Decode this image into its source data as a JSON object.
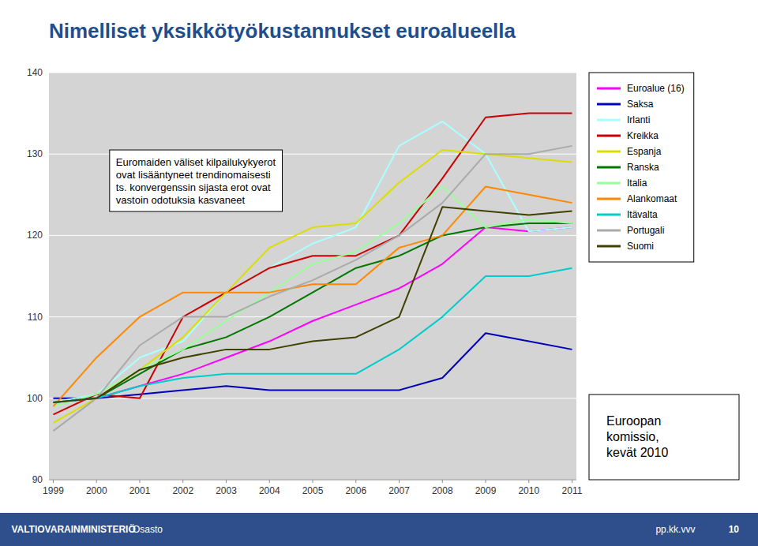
{
  "chart_data": {
    "type": "line",
    "title": "Nimelliset yksikkötyökustannukset euroalueella",
    "x": [
      1999,
      2000,
      2001,
      2002,
      2003,
      2004,
      2005,
      2006,
      2007,
      2008,
      2009,
      2010,
      2011
    ],
    "series": [
      {
        "name": "Euroalue (16)",
        "color": "#ff00ff",
        "values": [
          99.5,
          100.0,
          101.5,
          103.0,
          105.0,
          107.0,
          109.5,
          111.5,
          113.5,
          116.5,
          121.0,
          120.5,
          121.0
        ]
      },
      {
        "name": "Saksa",
        "color": "#0000bb",
        "values": [
          100.0,
          100.0,
          100.5,
          101.0,
          101.5,
          101.0,
          101.0,
          101.0,
          101.0,
          102.5,
          108.0,
          107.0,
          106.0
        ]
      },
      {
        "name": "Irlanti",
        "color": "#aaffff",
        "values": [
          99.5,
          100.5,
          105.0,
          107.0,
          113.0,
          116.0,
          119.0,
          121.0,
          131.0,
          134.0,
          130.0,
          120.5,
          121.0
        ]
      },
      {
        "name": "Kreikka",
        "color": "#cc0000",
        "values": [
          98.0,
          100.5,
          100.0,
          110.0,
          113.0,
          116.0,
          117.5,
          117.5,
          120.0,
          127.0,
          134.5,
          135.0,
          135.0
        ]
      },
      {
        "name": "Espanja",
        "color": "#dddd00",
        "values": [
          97.0,
          100.0,
          103.5,
          107.5,
          113.0,
          118.5,
          121.0,
          121.5,
          126.5,
          130.5,
          130.0,
          129.5,
          129.0
        ]
      },
      {
        "name": "Ranska",
        "color": "#007700",
        "values": [
          99.5,
          100.0,
          103.0,
          106.0,
          107.5,
          110.0,
          113.0,
          116.0,
          117.5,
          120.0,
          121.0,
          121.5,
          121.5
        ]
      },
      {
        "name": "Italia",
        "color": "#99ff99",
        "values": [
          99.0,
          100.5,
          103.5,
          106.0,
          109.5,
          113.0,
          116.5,
          118.0,
          121.5,
          126.0,
          121.0,
          122.0,
          121.5
        ]
      },
      {
        "name": "Alankomaat",
        "color": "#ff8800",
        "values": [
          99.0,
          105.0,
          110.0,
          113.0,
          113.0,
          113.0,
          114.0,
          114.0,
          118.5,
          120.0,
          126.0,
          125.0,
          124.0
        ]
      },
      {
        "name": "Itävalta",
        "color": "#00cccc",
        "values": [
          99.5,
          100.0,
          101.5,
          102.5,
          103.0,
          103.0,
          103.0,
          103.0,
          106.0,
          110.0,
          115.0,
          115.0,
          116.0
        ]
      },
      {
        "name": "Portugali",
        "color": "#aaaaaa",
        "values": [
          96.0,
          100.0,
          106.5,
          110.0,
          110.0,
          112.5,
          114.5,
          117.0,
          120.0,
          124.0,
          130.0,
          130.0,
          131.0
        ]
      },
      {
        "name": "Suomi",
        "color": "#404000",
        "values": [
          99.5,
          100.0,
          103.5,
          105.0,
          106.0,
          106.0,
          107.0,
          107.5,
          110.0,
          123.5,
          123.0,
          122.5,
          123.0
        ]
      }
    ],
    "xlim": [
      1998.9,
      2011.1
    ],
    "xticks": [
      1999,
      2000,
      2001,
      2002,
      2003,
      2004,
      2005,
      2006,
      2007,
      2008,
      2009,
      2010,
      2011
    ],
    "ylim": [
      90,
      140
    ],
    "yticks": [
      90,
      100,
      110,
      120,
      130,
      140
    ],
    "grid": true,
    "legend": "right",
    "annotation": "Euromaiden väliset kilpailukykyerot\novat lisääntyneet trendinomaisesti\nts. konvergenssin sijasta erot ovat\nvastoin odotuksia kasvaneet",
    "source": "Euroopan\nkomissio,\nkevät 2010",
    "footer": [
      "VALTIOVARAINMINISTERIÖ",
      "Osasto",
      "pp.kk.vvv",
      "10"
    ]
  }
}
